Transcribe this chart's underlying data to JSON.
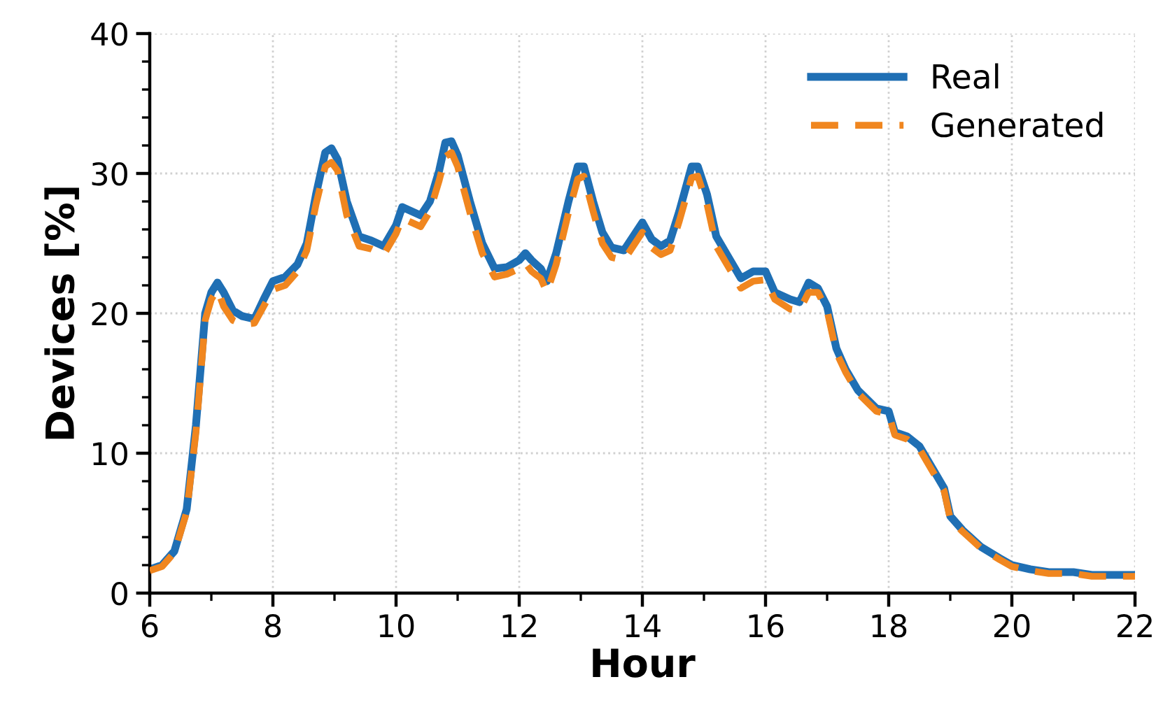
{
  "chart_data": {
    "type": "line",
    "xlabel": "Hour",
    "ylabel": "Devices [%]",
    "xlim": [
      6,
      22
    ],
    "ylim": [
      0,
      40
    ],
    "xticks": [
      6,
      8,
      10,
      12,
      14,
      16,
      18,
      20,
      22
    ],
    "yticks": [
      0,
      10,
      20,
      30,
      40
    ],
    "grid": true,
    "legend": "top right",
    "series": [
      {
        "name": "Real",
        "color": "#1f6fb4",
        "line_style": "solid",
        "x": [
          6.0,
          6.2,
          6.4,
          6.6,
          6.75,
          6.9,
          7.0,
          7.1,
          7.2,
          7.35,
          7.5,
          7.7,
          7.85,
          8.0,
          8.2,
          8.4,
          8.55,
          8.7,
          8.85,
          8.95,
          9.05,
          9.2,
          9.4,
          9.6,
          9.8,
          10.0,
          10.1,
          10.25,
          10.4,
          10.55,
          10.7,
          10.8,
          10.9,
          11.0,
          11.2,
          11.4,
          11.6,
          11.8,
          12.0,
          12.1,
          12.2,
          12.35,
          12.45,
          12.6,
          12.8,
          12.95,
          13.05,
          13.2,
          13.35,
          13.5,
          13.7,
          13.85,
          14.0,
          14.15,
          14.3,
          14.45,
          14.6,
          14.8,
          14.9,
          15.05,
          15.2,
          15.4,
          15.6,
          15.8,
          16.0,
          16.15,
          16.4,
          16.55,
          16.7,
          16.85,
          17.0,
          17.15,
          17.3,
          17.5,
          17.8,
          18.0,
          18.1,
          18.3,
          18.5,
          18.7,
          18.9,
          19.0,
          19.2,
          19.5,
          19.8,
          20.0,
          20.3,
          20.6,
          21.0,
          21.3,
          21.7,
          22.0
        ],
        "values": [
          1.7,
          2.0,
          3,
          6,
          12,
          20,
          21.5,
          22.2,
          21.5,
          20.2,
          19.8,
          19.6,
          21,
          22.3,
          22.6,
          23.5,
          25,
          28.5,
          31.5,
          31.8,
          31,
          28,
          25.5,
          25.2,
          24.8,
          26.3,
          27.6,
          27.3,
          27,
          28,
          30.2,
          32.2,
          32.3,
          31.3,
          28,
          25,
          23.2,
          23.3,
          23.8,
          24.3,
          23.8,
          23.2,
          22.3,
          24.3,
          28,
          30.5,
          30.5,
          28,
          25.8,
          24.7,
          24.5,
          25.5,
          26.5,
          25.3,
          24.8,
          25.2,
          27.3,
          30.5,
          30.5,
          28.5,
          25.5,
          24,
          22.5,
          23,
          23,
          21.5,
          21,
          20.8,
          22.2,
          21.8,
          20.5,
          17.5,
          16,
          14.5,
          13.2,
          13,
          11.5,
          11.2,
          10.5,
          9,
          7.5,
          5.5,
          4.5,
          3.3,
          2.5,
          2,
          1.7,
          1.5,
          1.5,
          1.3,
          1.3,
          1.3
        ]
      },
      {
        "name": "Generated",
        "color": "#f0861f",
        "line_style": "dashed",
        "x": [
          6.0,
          6.2,
          6.4,
          6.6,
          6.75,
          6.9,
          7.0,
          7.1,
          7.2,
          7.35,
          7.5,
          7.7,
          7.85,
          8.0,
          8.2,
          8.4,
          8.55,
          8.7,
          8.85,
          8.95,
          9.05,
          9.2,
          9.4,
          9.6,
          9.8,
          10.0,
          10.1,
          10.25,
          10.4,
          10.55,
          10.7,
          10.8,
          10.9,
          11.0,
          11.2,
          11.4,
          11.6,
          11.8,
          12.0,
          12.1,
          12.2,
          12.35,
          12.45,
          12.6,
          12.8,
          12.95,
          13.05,
          13.2,
          13.35,
          13.5,
          13.7,
          13.85,
          14.0,
          14.15,
          14.3,
          14.45,
          14.6,
          14.8,
          14.9,
          15.05,
          15.2,
          15.4,
          15.6,
          15.8,
          16.0,
          16.15,
          16.4,
          16.55,
          16.7,
          16.85,
          17.0,
          17.15,
          17.3,
          17.5,
          17.8,
          18.0,
          18.1,
          18.3,
          18.5,
          18.7,
          18.9,
          19.0,
          19.2,
          19.5,
          19.8,
          20.0,
          20.3,
          20.6,
          21.0,
          21.3,
          21.7,
          22.0
        ],
        "values": [
          1.6,
          1.9,
          2.9,
          5.8,
          11.5,
          19.5,
          21,
          21.7,
          20.5,
          19.5,
          19.2,
          19.3,
          20.5,
          21.7,
          22,
          23,
          24.5,
          27.8,
          30.5,
          30.8,
          30.2,
          27,
          24.8,
          24.6,
          24.2,
          25.7,
          26.8,
          26.5,
          26.2,
          27.3,
          29.5,
          31.2,
          31.5,
          30.5,
          27.2,
          24.3,
          22.6,
          22.8,
          23.2,
          23.6,
          23,
          22.5,
          21.5,
          23.5,
          27.2,
          29.6,
          29.8,
          27.3,
          25,
          24,
          23.8,
          24.8,
          25.8,
          24.7,
          24.2,
          24.5,
          26.6,
          29.7,
          29.8,
          27.8,
          24.8,
          23.3,
          21.8,
          22.3,
          22.4,
          21,
          20.3,
          20.2,
          21.5,
          21.5,
          20.2,
          17.2,
          15.8,
          14.3,
          13,
          12.8,
          11.3,
          11,
          10.3,
          8.8,
          7.3,
          5.3,
          4.4,
          3.2,
          2.4,
          1.9,
          1.6,
          1.4,
          1.4,
          1.2,
          1.2,
          1.2
        ]
      }
    ]
  }
}
